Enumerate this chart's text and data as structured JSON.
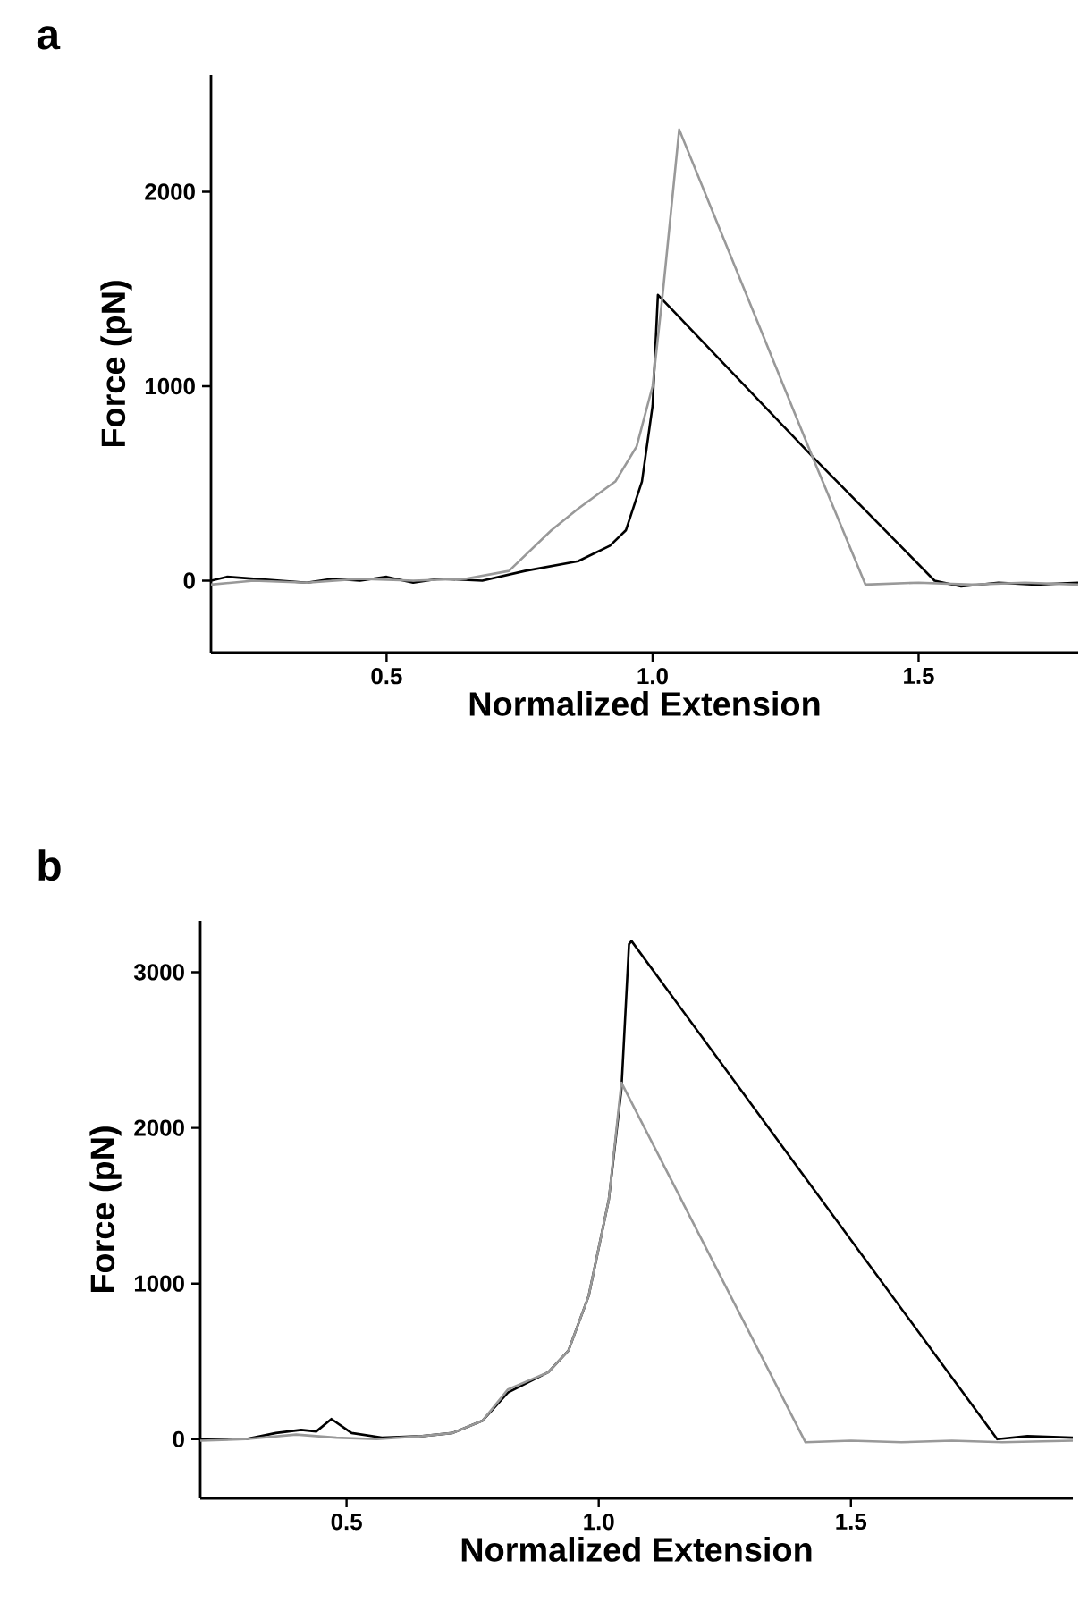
{
  "chart_data": [
    {
      "type": "line",
      "title": "a",
      "xlabel": "Normalized Extension",
      "ylabel": "Force (pN)",
      "xlim": [
        0.17,
        1.8
      ],
      "ylim": [
        -370,
        2600
      ],
      "xticks": [
        {
          "value": 0.5,
          "label": "0.5"
        },
        {
          "value": 1,
          "label": "1.0"
        },
        {
          "value": 1.5,
          "label": "1.5"
        }
      ],
      "yticks": [
        0,
        1000,
        2000
      ],
      "grid": false,
      "series": [
        {
          "color": "#000000",
          "x": [
            0.17,
            0.2,
            0.25,
            0.3,
            0.35,
            0.4,
            0.45,
            0.5,
            0.55,
            0.6,
            0.68,
            0.76,
            0.86,
            0.92,
            0.95,
            0.98,
            1.0,
            1.01,
            1.3,
            1.53,
            1.58,
            1.65,
            1.72,
            1.8
          ],
          "values": [
            0,
            20,
            10,
            0,
            -10,
            10,
            0,
            20,
            -10,
            10,
            0,
            50,
            100,
            180,
            260,
            510,
            900,
            1470,
            640,
            0,
            -30,
            -10,
            -20,
            -10
          ]
        },
        {
          "color": "#999999",
          "x": [
            0.17,
            0.25,
            0.35,
            0.45,
            0.55,
            0.65,
            0.73,
            0.81,
            0.86,
            0.93,
            0.97,
            1.0,
            1.02,
            1.05,
            1.3,
            1.4,
            1.5,
            1.6,
            1.7,
            1.8
          ],
          "values": [
            -20,
            0,
            -10,
            10,
            0,
            10,
            50,
            260,
            370,
            510,
            690,
            1000,
            1500,
            2320,
            640,
            -20,
            -10,
            -20,
            -10,
            -20
          ]
        }
      ]
    },
    {
      "type": "line",
      "title": "b",
      "xlabel": "Normalized Extension",
      "ylabel": "Force (pN)",
      "xlim": [
        0.21,
        1.94
      ],
      "ylim": [
        -380,
        3330
      ],
      "xticks": [
        {
          "value": 0.5,
          "label": "0.5"
        },
        {
          "value": 1,
          "label": "1.0"
        },
        {
          "value": 1.5,
          "label": "1.5"
        }
      ],
      "yticks": [
        0,
        1000,
        2000,
        3000
      ],
      "grid": false,
      "series": [
        {
          "color": "#000000",
          "x": [
            0.21,
            0.3,
            0.36,
            0.41,
            0.44,
            0.47,
            0.51,
            0.57,
            0.65,
            0.71,
            0.77,
            0.82,
            0.9,
            0.94,
            0.98,
            1.02,
            1.045,
            1.06,
            1.065,
            1.79,
            1.85,
            1.94
          ],
          "values": [
            0,
            0,
            40,
            60,
            50,
            130,
            40,
            10,
            20,
            40,
            120,
            300,
            430,
            570,
            920,
            1540,
            2250,
            3180,
            3200,
            0,
            20,
            10
          ]
        },
        {
          "color": "#999999",
          "x": [
            0.21,
            0.3,
            0.4,
            0.48,
            0.56,
            0.65,
            0.71,
            0.77,
            0.82,
            0.9,
            0.94,
            0.98,
            1.02,
            1.045,
            1.41,
            1.5,
            1.6,
            1.7,
            1.8,
            1.94
          ],
          "values": [
            -10,
            0,
            30,
            10,
            0,
            20,
            40,
            120,
            320,
            430,
            570,
            920,
            1540,
            2290,
            -20,
            -10,
            -20,
            -10,
            -20,
            -10
          ]
        }
      ]
    }
  ]
}
